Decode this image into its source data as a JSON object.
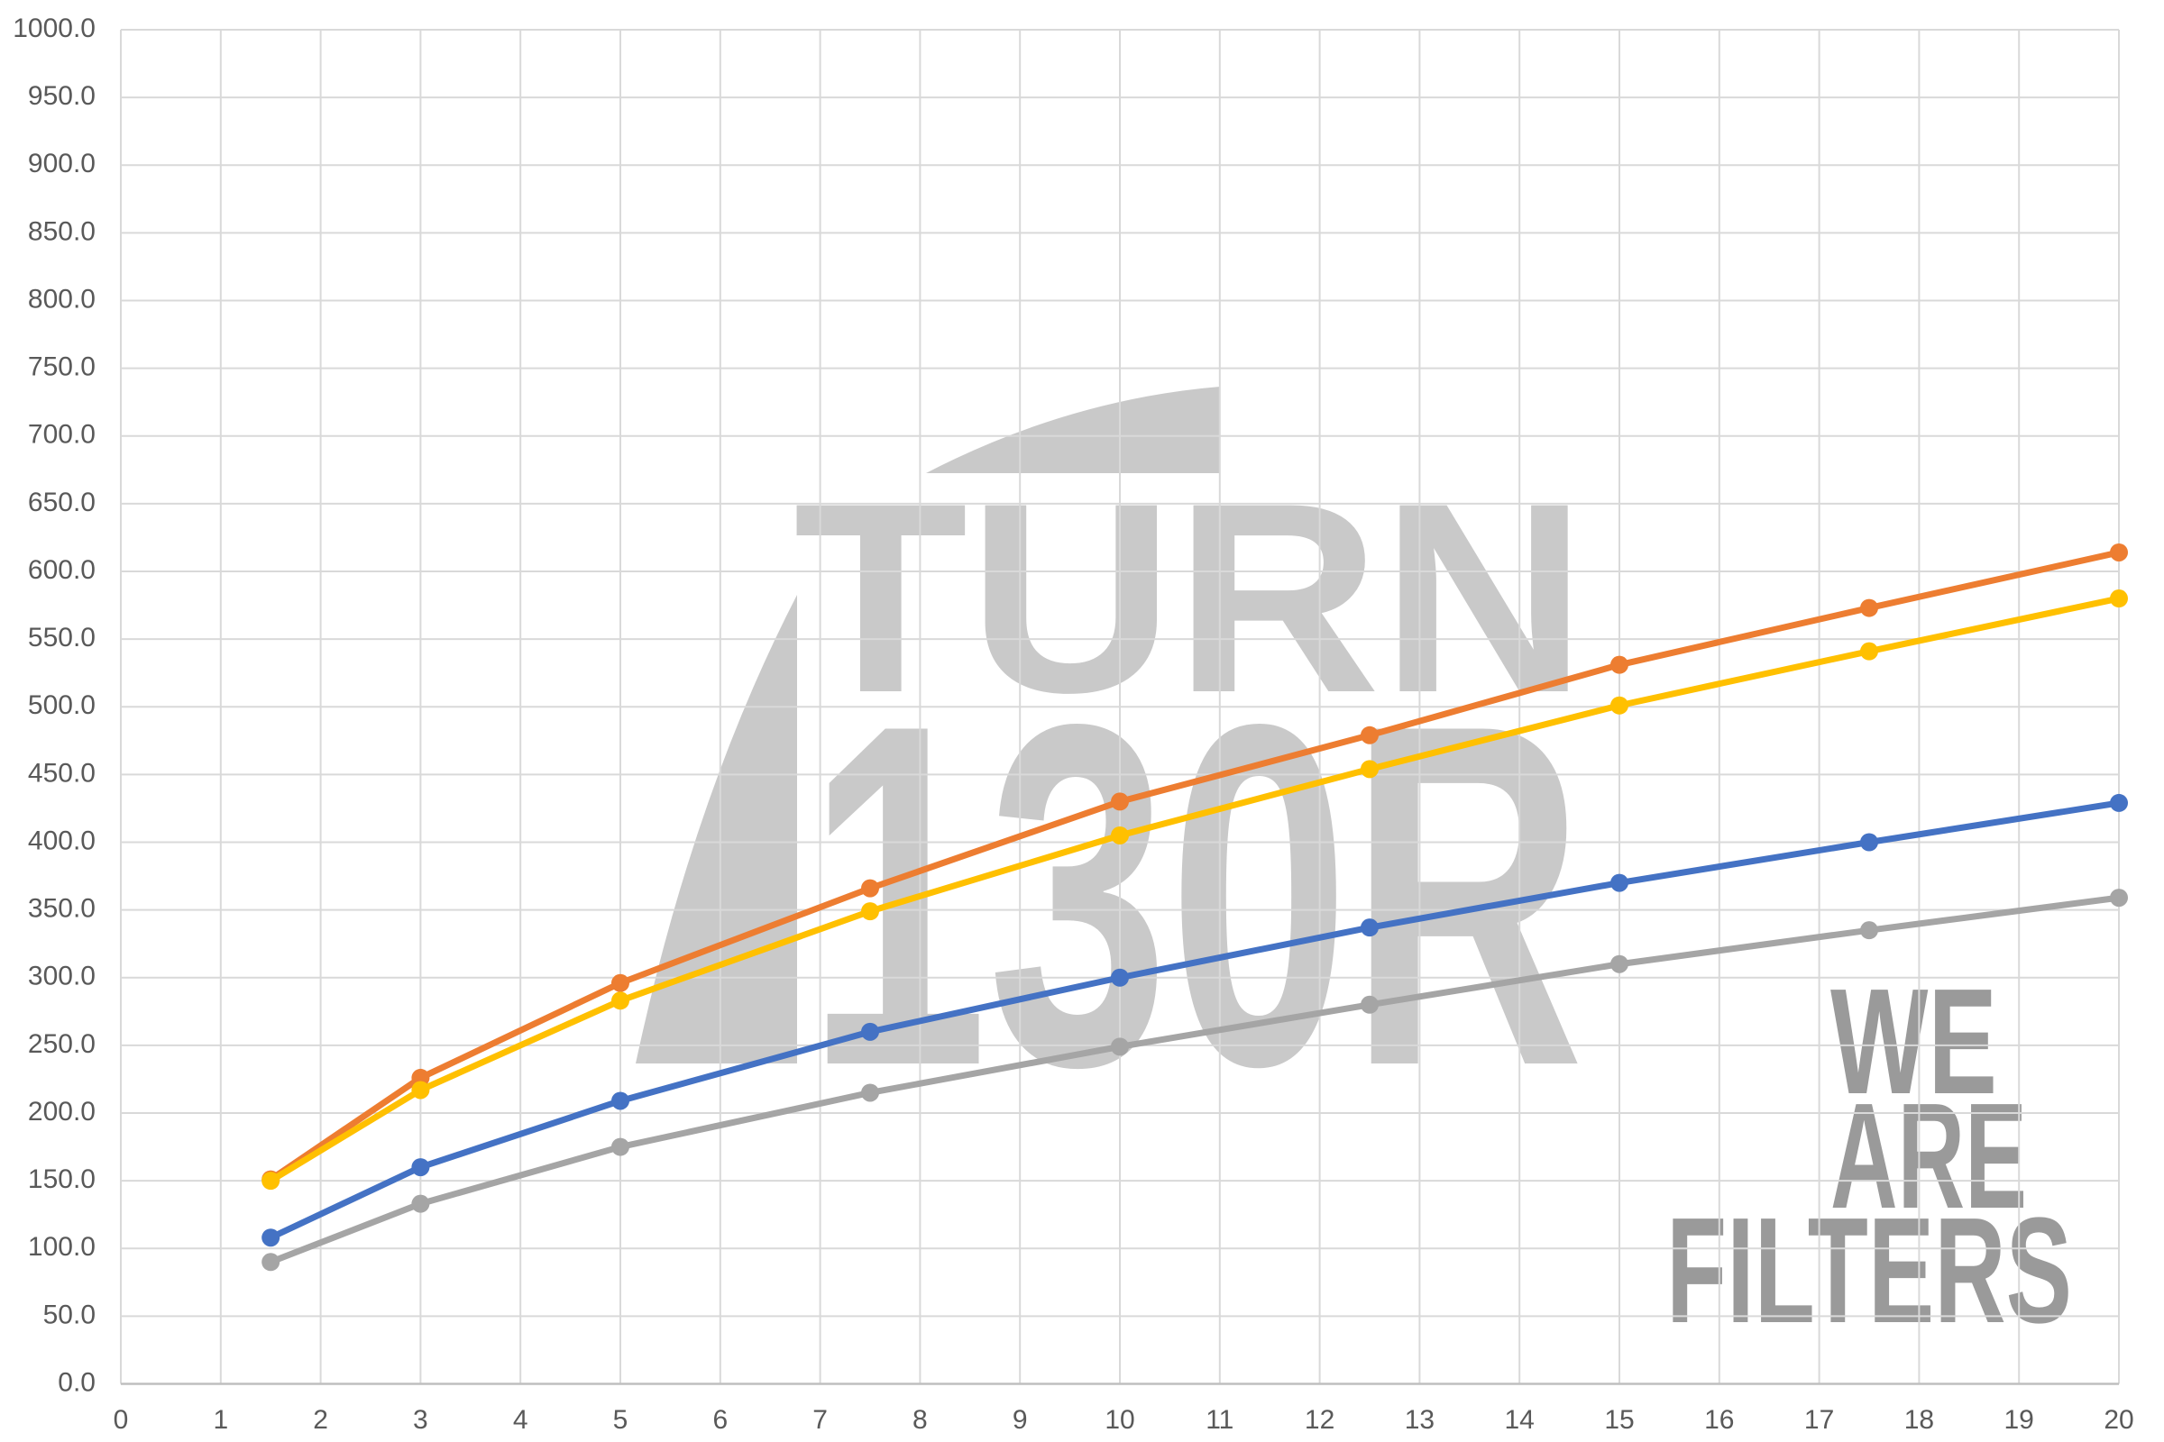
{
  "chart_data": {
    "type": "line",
    "title": "",
    "xlabel": "",
    "ylabel": "",
    "xlim": [
      0,
      20
    ],
    "ylim": [
      0,
      1000
    ],
    "x_tick_step": 1,
    "y_tick_step": 50,
    "grid": true,
    "legend": false,
    "x": [
      1.5,
      3,
      5,
      7.5,
      10,
      12.5,
      15,
      17.5,
      20
    ],
    "series": [
      {
        "name": "blue",
        "color": "#4472C4",
        "values": [
          108,
          160,
          209,
          260,
          300,
          337,
          370,
          400,
          429
        ]
      },
      {
        "name": "orange",
        "color": "#ED7D31",
        "values": [
          151,
          226,
          296,
          366,
          430,
          479,
          531,
          573,
          614
        ]
      },
      {
        "name": "gray",
        "color": "#A5A5A5",
        "values": [
          90,
          133,
          175,
          215,
          249,
          280,
          310,
          335,
          359
        ]
      },
      {
        "name": "yellow",
        "color": "#FFC000",
        "values": [
          150,
          217,
          283,
          349,
          405,
          454,
          501,
          541,
          580
        ]
      }
    ],
    "x_tick_labels": [
      "0",
      "1",
      "2",
      "3",
      "4",
      "5",
      "6",
      "7",
      "8",
      "9",
      "10",
      "11",
      "12",
      "13",
      "14",
      "15",
      "16",
      "17",
      "18",
      "19",
      "20"
    ],
    "y_tick_labels": [
      "0.0",
      "50.0",
      "100.0",
      "150.0",
      "200.0",
      "250.0",
      "300.0",
      "350.0",
      "400.0",
      "450.0",
      "500.0",
      "550.0",
      "600.0",
      "650.0",
      "700.0",
      "750.0",
      "800.0",
      "850.0",
      "900.0",
      "950.0",
      "1000.0"
    ]
  },
  "watermark": {
    "brand_line1": "TURN",
    "brand_line2": "130R",
    "tagline_line1": "WE",
    "tagline_line2": "ARE",
    "tagline_line3": "FILTERS",
    "brand_color": "#C9C9C9",
    "tagline_color": "#9A9A9A"
  },
  "axis_style": {
    "tick_label_color": "#595959",
    "grid_color": "#D9D9D9",
    "axis_line_color": "#BFBFBF",
    "background": "#FFFFFF"
  }
}
